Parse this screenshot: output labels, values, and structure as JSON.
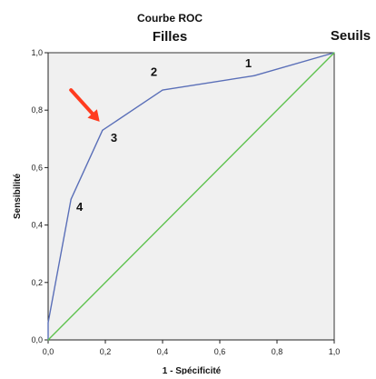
{
  "chart_data": {
    "type": "line",
    "title": "Courbe ROC",
    "subtitle": "Filles",
    "corner_label": "Seuils",
    "xlabel": "1 - Spécificité",
    "ylabel": "Sensibilité",
    "xlim": [
      0,
      1
    ],
    "ylim": [
      0,
      1
    ],
    "x_ticks": [
      "0,0",
      "0,2",
      "0,4",
      "0,6",
      "0,8",
      "1,0"
    ],
    "y_ticks": [
      "0,0",
      "0,2",
      "0,4",
      "0,6",
      "0,8",
      "1,0"
    ],
    "grid": false,
    "plot_background": "#f0f0f0",
    "series": [
      {
        "color": "#5a6fb8",
        "points": [
          {
            "x": 0.0,
            "y": 0.0
          },
          {
            "x": 0.0,
            "y": 0.06
          },
          {
            "x": 0.08,
            "y": 0.49
          },
          {
            "x": 0.19,
            "y": 0.73
          },
          {
            "x": 0.4,
            "y": 0.87
          },
          {
            "x": 0.72,
            "y": 0.92
          },
          {
            "x": 1.0,
            "y": 1.0
          }
        ]
      },
      {
        "color": "#5fc24f",
        "points": [
          {
            "x": 0.0,
            "y": 0.0
          },
          {
            "x": 1.0,
            "y": 1.0
          }
        ]
      }
    ],
    "annotations": [
      {
        "text": "1",
        "x": 0.7,
        "y": 0.95
      },
      {
        "text": "2",
        "x": 0.37,
        "y": 0.92
      },
      {
        "text": "3",
        "x": 0.23,
        "y": 0.69
      },
      {
        "text": "4",
        "x": 0.11,
        "y": 0.45
      }
    ],
    "arrow": {
      "color": "#ff3b1f",
      "from": {
        "x": 0.08,
        "y": 0.87
      },
      "to": {
        "x": 0.18,
        "y": 0.76
      }
    }
  }
}
